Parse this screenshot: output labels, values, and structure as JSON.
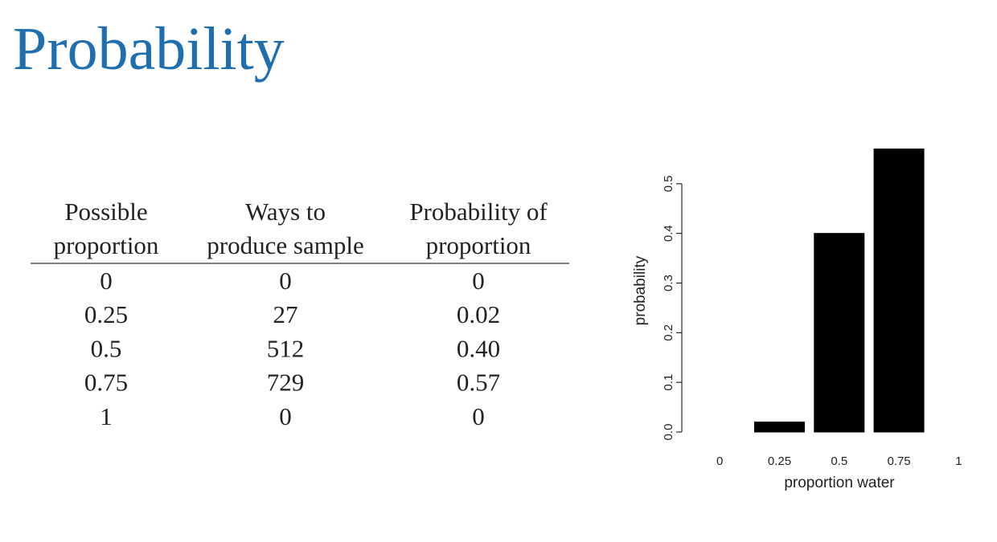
{
  "title": "Probability",
  "table": {
    "header": [
      [
        "Possible",
        "proportion"
      ],
      [
        "Ways to",
        "produce sample"
      ],
      [
        "Probability of",
        "proportion"
      ]
    ],
    "rows": [
      [
        "0",
        "0",
        "0"
      ],
      [
        "0.25",
        "27",
        "0.02"
      ],
      [
        "0.5",
        "512",
        "0.40"
      ],
      [
        "0.75",
        "729",
        "0.57"
      ],
      [
        "1",
        "0",
        "0"
      ]
    ]
  },
  "chart_data": {
    "type": "bar",
    "categories": [
      "0",
      "0.25",
      "0.5",
      "0.75",
      "1"
    ],
    "values": [
      0,
      0.02,
      0.4,
      0.57,
      0
    ],
    "color": "#000000",
    "xlabel": "proportion water",
    "ylabel": "probability",
    "ylim": [
      0,
      0.6
    ],
    "yticks": [
      {
        "value": 0,
        "label": "0.0"
      },
      {
        "value": 0.1,
        "label": "0.1"
      },
      {
        "value": 0.2,
        "label": "0.2"
      },
      {
        "value": 0.3,
        "label": "0.3"
      },
      {
        "value": 0.4,
        "label": "0.4"
      },
      {
        "value": 0.5,
        "label": "0.5"
      }
    ]
  }
}
